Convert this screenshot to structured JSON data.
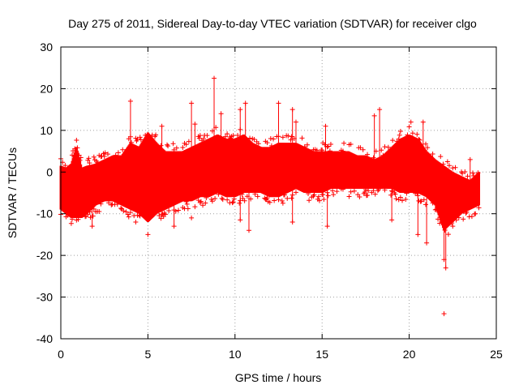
{
  "chart_data": {
    "type": "scatter",
    "title": "Day 275 of 2011, Sidereal Day-to-day VTEC variation (SDTVAR) for receiver clgo",
    "xlabel": "GPS time / hours",
    "ylabel": "SDTVAR / TECUs",
    "xlim": [
      0,
      25
    ],
    "ylim": [
      -40,
      30
    ],
    "grid": true,
    "x_ticks": [
      0,
      5,
      10,
      15,
      20,
      25
    ],
    "y_ticks": [
      -40,
      -30,
      -20,
      -10,
      0,
      10,
      20,
      30
    ],
    "x_tick_labels": [
      "0",
      "5",
      "10",
      "15",
      "20",
      "25"
    ],
    "y_tick_labels": [
      "-40",
      "-30",
      "-20",
      "-10",
      "0",
      "10",
      "20",
      "30"
    ],
    "marker": "plus",
    "color": "#ff0000",
    "series": [
      {
        "name": "clgo",
        "envelope_x": [
          0.0,
          0.3,
          0.6,
          0.9,
          1.2,
          1.5,
          2.0,
          2.5,
          3.0,
          3.5,
          4.0,
          4.5,
          5.0,
          5.5,
          6.0,
          6.5,
          7.0,
          7.5,
          8.0,
          8.5,
          9.0,
          9.5,
          10.0,
          10.5,
          11.0,
          11.5,
          12.0,
          12.5,
          13.0,
          13.5,
          14.0,
          14.5,
          15.0,
          15.5,
          16.0,
          16.5,
          17.0,
          17.5,
          18.0,
          18.5,
          19.0,
          19.5,
          20.0,
          20.5,
          21.0,
          21.5,
          22.0,
          22.5,
          23.0,
          23.5,
          24.0
        ],
        "envelope_upper": [
          1.5,
          1.0,
          2.0,
          6.0,
          1.0,
          1.5,
          2.0,
          3.0,
          4.0,
          4.0,
          7.0,
          6.0,
          9.5,
          7.0,
          5.0,
          5.0,
          5.0,
          6.0,
          7.0,
          8.0,
          9.0,
          8.0,
          8.0,
          9.0,
          7.0,
          6.0,
          6.0,
          7.0,
          7.0,
          7.0,
          6.0,
          5.0,
          5.0,
          5.0,
          5.0,
          5.0,
          4.0,
          4.0,
          3.0,
          4.0,
          6.0,
          8.0,
          9.0,
          8.0,
          5.0,
          3.0,
          1.5,
          0.0,
          -1.0,
          -2.0,
          0.0
        ],
        "envelope_lower": [
          -9.0,
          -10.0,
          -11.0,
          -11.0,
          -11.0,
          -10.0,
          -8.0,
          -7.0,
          -7.0,
          -8.0,
          -9.0,
          -10.0,
          -12.0,
          -10.0,
          -9.0,
          -8.0,
          -7.0,
          -7.0,
          -6.0,
          -6.0,
          -5.0,
          -6.0,
          -6.0,
          -5.0,
          -5.0,
          -5.0,
          -6.0,
          -6.0,
          -5.0,
          -4.0,
          -5.0,
          -5.0,
          -5.0,
          -4.0,
          -4.0,
          -4.0,
          -4.0,
          -4.0,
          -4.0,
          -4.0,
          -4.0,
          -5.0,
          -5.0,
          -5.0,
          -6.0,
          -8.0,
          -14.0,
          -12.0,
          -10.0,
          -9.0,
          -8.0
        ],
        "outliers": [
          [
            4.0,
            17.0
          ],
          [
            5.8,
            11.0
          ],
          [
            7.5,
            16.5
          ],
          [
            7.7,
            11.5
          ],
          [
            8.8,
            22.5
          ],
          [
            9.2,
            14.0
          ],
          [
            10.3,
            15.0
          ],
          [
            10.6,
            16.5
          ],
          [
            12.5,
            16.5
          ],
          [
            13.3,
            15.0
          ],
          [
            13.5,
            12.0
          ],
          [
            15.2,
            11.0
          ],
          [
            18.0,
            13.5
          ],
          [
            18.3,
            15.0
          ],
          [
            20.1,
            12.0
          ],
          [
            20.8,
            12.0
          ],
          [
            1.8,
            -13.0
          ],
          [
            4.3,
            -12.0
          ],
          [
            5.0,
            -15.0
          ],
          [
            6.5,
            -13.0
          ],
          [
            7.5,
            -11.0
          ],
          [
            10.3,
            -11.5
          ],
          [
            10.8,
            -14.0
          ],
          [
            13.3,
            -12.0
          ],
          [
            15.3,
            -13.0
          ],
          [
            19.0,
            -11.5
          ],
          [
            20.5,
            -15.0
          ],
          [
            21.0,
            -17.0
          ],
          [
            22.0,
            -21.0
          ],
          [
            22.1,
            -23.0
          ],
          [
            22.5,
            -13.0
          ],
          [
            23.5,
            3.0
          ],
          [
            23.8,
            -10.0
          ],
          [
            22.0,
            -34.0
          ]
        ]
      }
    ]
  }
}
